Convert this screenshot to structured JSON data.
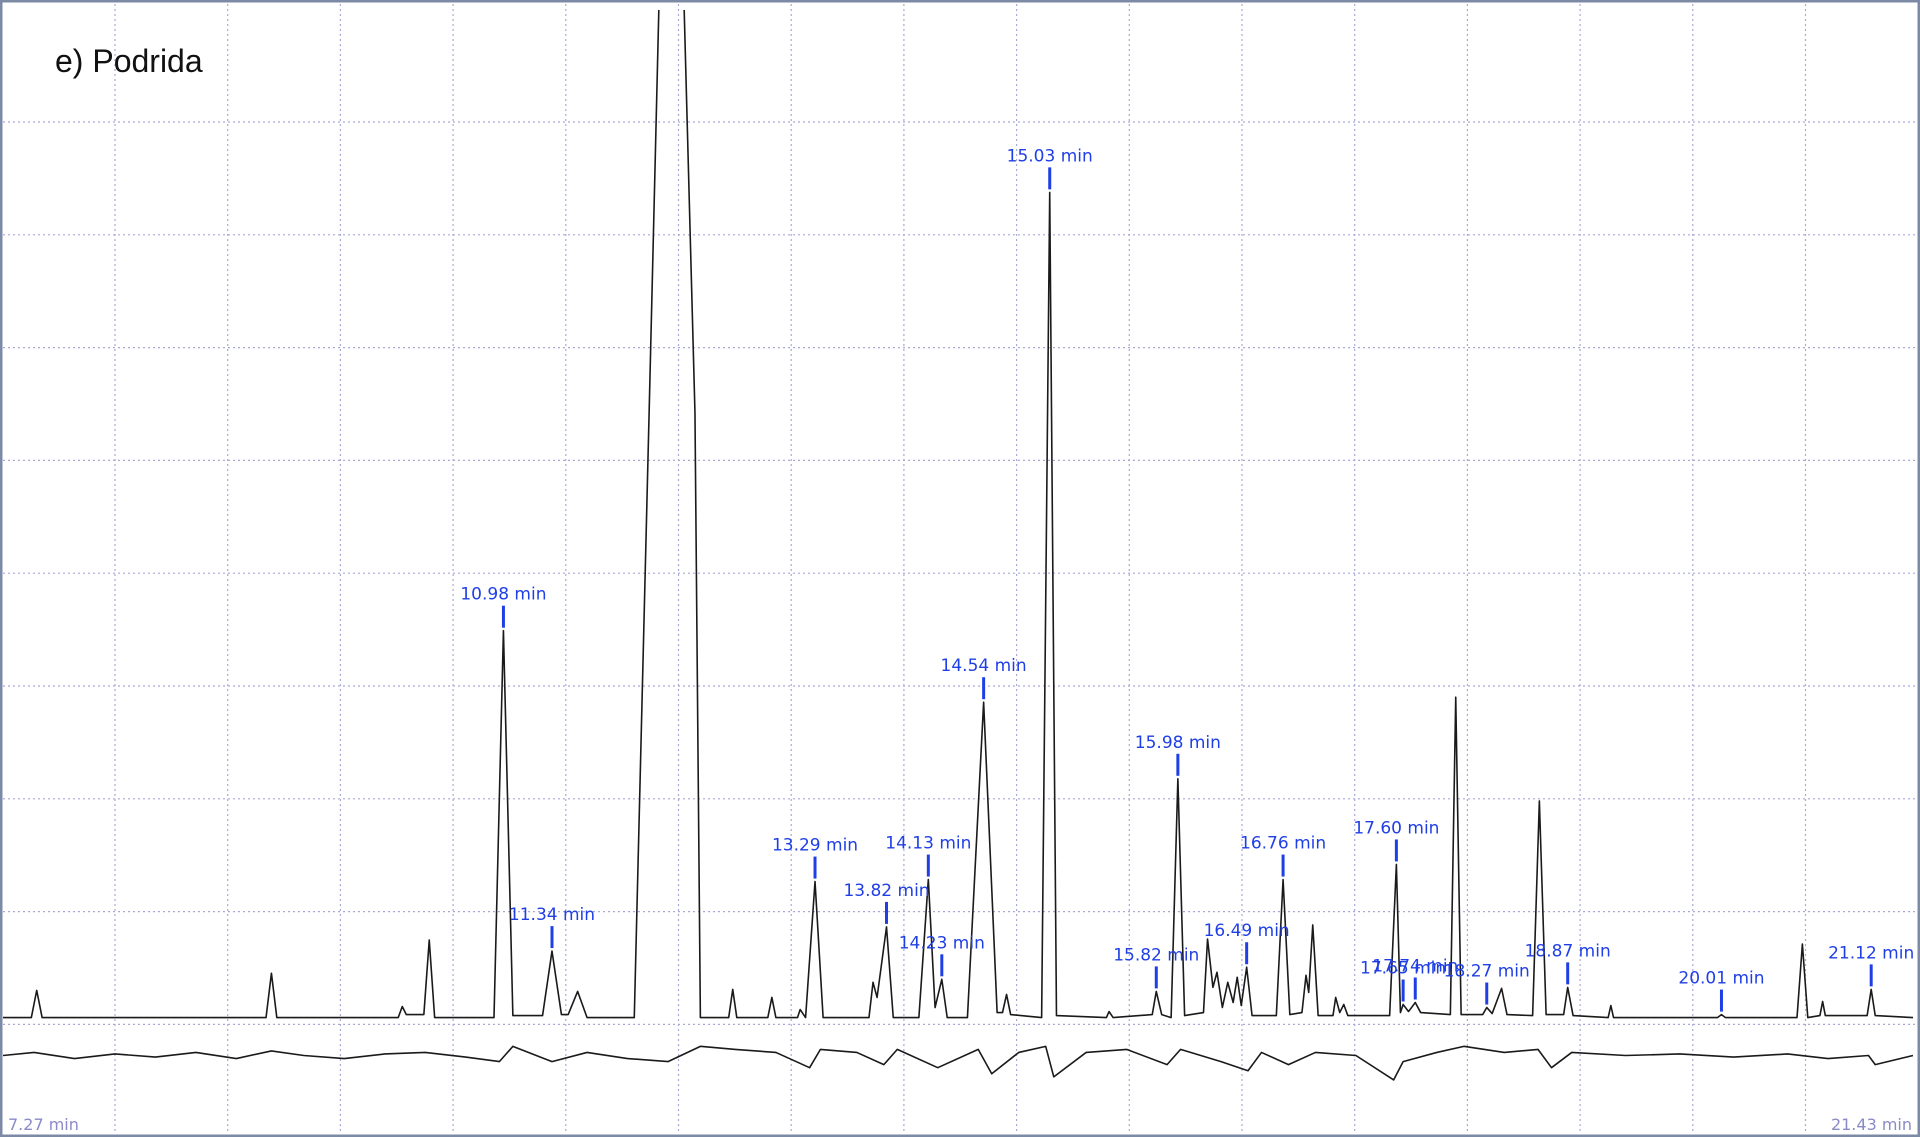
{
  "chart_data": [
    {
      "type": "line",
      "title": "e) Podrida",
      "x": [
        7.27,
        7.48,
        7.52,
        7.56,
        9.22,
        9.26,
        9.3,
        10.2,
        10.23,
        10.26,
        10.39,
        10.43,
        10.47,
        10.91,
        10.98,
        11.05,
        11.27,
        11.34,
        11.41,
        11.46,
        11.53,
        11.6,
        11.95,
        12.06,
        12.15,
        12.3,
        12.4,
        12.44,
        12.65,
        12.68,
        12.71,
        12.94,
        12.97,
        13.0,
        13.16,
        13.18,
        13.22,
        13.29,
        13.35,
        13.69,
        13.72,
        13.75,
        13.82,
        13.87,
        14.06,
        14.13,
        14.18,
        14.23,
        14.27,
        14.42,
        14.54,
        14.64,
        14.68,
        14.71,
        14.74,
        14.97,
        15.03,
        15.08,
        15.45,
        15.47,
        15.5,
        15.79,
        15.82,
        15.86,
        15.93,
        15.98,
        16.03,
        16.17,
        16.2,
        16.24,
        16.27,
        16.31,
        16.35,
        16.39,
        16.42,
        16.45,
        16.49,
        16.53,
        16.71,
        16.76,
        16.81,
        16.9,
        16.93,
        16.95,
        16.98,
        17.02,
        17.13,
        17.15,
        17.18,
        17.21,
        17.24,
        17.55,
        17.6,
        17.63,
        17.65,
        17.69,
        17.74,
        17.78,
        18.0,
        18.04,
        18.08,
        18.24,
        18.27,
        18.31,
        18.38,
        18.42,
        18.61,
        18.66,
        18.71,
        18.84,
        18.87,
        18.91,
        19.17,
        19.19,
        19.21,
        19.98,
        20.01,
        20.04,
        20.57,
        20.61,
        20.65,
        20.74,
        20.76,
        20.78,
        21.09,
        21.12,
        21.15,
        21.43
      ],
      "series": [
        {
          "color": "#1a1a1a",
          "values": [
            0,
            0,
            2.7,
            0,
            0,
            4.4,
            0,
            0,
            1.1,
            0.3,
            0.3,
            7.7,
            0,
            0,
            38.4,
            0.2,
            0.2,
            6.6,
            0.3,
            0.3,
            2.6,
            0,
            0,
            60,
            110,
            110,
            60,
            0,
            0,
            2.8,
            0,
            0,
            2.0,
            0,
            0,
            0.8,
            0,
            13.5,
            0,
            0,
            3.5,
            2.0,
            9.0,
            0,
            0,
            13.7,
            1.0,
            3.8,
            0,
            0,
            31.3,
            0.5,
            0.5,
            2.3,
            0.3,
            0,
            81.9,
            0.2,
            0,
            0.6,
            0,
            0.3,
            2.6,
            0.3,
            0,
            23.7,
            0.2,
            0.5,
            7.8,
            3.0,
            4.5,
            1.0,
            3.5,
            1.5,
            4.0,
            1.2,
            5.0,
            0.2,
            0.2,
            13.7,
            0.3,
            0.5,
            4.2,
            2.5,
            9.2,
            0.2,
            0.2,
            2.0,
            0.5,
            1.3,
            0.2,
            0.2,
            15.2,
            0.5,
            1.3,
            0.6,
            1.5,
            0.5,
            0.3,
            31.8,
            0.3,
            0.3,
            1.0,
            0.4,
            2.9,
            0.3,
            0.2,
            21.5,
            0.3,
            0.3,
            3.0,
            0.2,
            0,
            1.2,
            0,
            0,
            0.3,
            0,
            0,
            7.3,
            0,
            0.2,
            1.6,
            0.2,
            0.2,
            2.8,
            0.2,
            0
          ]
        }
      ],
      "xlim": [
        7.27,
        21.43
      ],
      "xticks": [
        {
          "value": 7.27,
          "label": "7.27 min"
        },
        {
          "value": 21.43,
          "label": "21.43 min"
        }
      ],
      "ylim": [
        0,
        100
      ],
      "grid": true,
      "annotations": [
        {
          "x": 10.98,
          "y": 38.4,
          "label": "10.98 min"
        },
        {
          "x": 11.34,
          "y": 6.6,
          "label": "11.34 min"
        },
        {
          "x": 13.29,
          "y": 13.5,
          "label": "13.29 min"
        },
        {
          "x": 13.82,
          "y": 9.0,
          "label": "13.82 min"
        },
        {
          "x": 14.13,
          "y": 13.7,
          "label": "14.13 min"
        },
        {
          "x": 14.23,
          "y": 3.8,
          "label": "14.23 min"
        },
        {
          "x": 14.54,
          "y": 31.3,
          "label": "14.54 min"
        },
        {
          "x": 15.03,
          "y": 81.9,
          "label": "15.03 min"
        },
        {
          "x": 15.82,
          "y": 2.6,
          "label": "15.82 min"
        },
        {
          "x": 15.98,
          "y": 23.7,
          "label": "15.98 min"
        },
        {
          "x": 16.49,
          "y": 5.0,
          "label": "16.49 min"
        },
        {
          "x": 16.76,
          "y": 13.7,
          "label": "16.76 min"
        },
        {
          "x": 17.6,
          "y": 15.2,
          "label": "17.60 min"
        },
        {
          "x": 17.65,
          "y": 1.3,
          "label": "17.65 min"
        },
        {
          "x": 17.74,
          "y": 1.5,
          "label": "17.74 min"
        },
        {
          "x": 18.27,
          "y": 1.0,
          "label": "18.27 min"
        },
        {
          "x": 18.87,
          "y": 3.0,
          "label": "18.87 min"
        },
        {
          "x": 20.01,
          "y": 0.3,
          "label": "20.01 min"
        },
        {
          "x": 21.12,
          "y": 2.8,
          "label": "21.12 min"
        }
      ]
    },
    {
      "type": "line",
      "x": [
        7.27,
        7.5,
        7.8,
        8.1,
        8.4,
        8.7,
        9.0,
        9.26,
        9.5,
        9.8,
        10.1,
        10.4,
        10.7,
        10.95,
        11.05,
        11.34,
        11.6,
        11.9,
        12.2,
        12.44,
        12.7,
        13.0,
        13.25,
        13.33,
        13.6,
        13.8,
        13.9,
        14.2,
        14.5,
        14.6,
        14.8,
        15.0,
        15.06,
        15.3,
        15.6,
        15.9,
        16.0,
        16.3,
        16.5,
        16.6,
        16.8,
        17.0,
        17.3,
        17.58,
        17.65,
        17.9,
        18.1,
        18.4,
        18.65,
        18.75,
        18.9,
        19.3,
        19.7,
        20.1,
        20.5,
        20.8,
        21.1,
        21.15,
        21.43
      ],
      "series": [
        {
          "color": "#1a1a1a",
          "values": [
            0,
            1,
            -1,
            0.5,
            -0.5,
            1,
            -1,
            1.5,
            0,
            -1,
            0.5,
            1,
            -0.5,
            -2,
            3,
            -2,
            1,
            -1,
            -2,
            3,
            2,
            1,
            -4,
            2,
            1,
            -3,
            2,
            -4,
            2,
            -6,
            1,
            3,
            -7,
            1,
            2,
            -3,
            2,
            -2,
            -5,
            1,
            -3,
            1,
            0,
            -8,
            -2,
            1,
            3,
            1,
            2,
            -4,
            1,
            0,
            0.5,
            -0.5,
            0.5,
            -1,
            0,
            -3,
            0
          ]
        }
      ],
      "xlim": [
        7.27,
        21.43
      ],
      "ylim": [
        -10,
        10
      ]
    }
  ]
}
